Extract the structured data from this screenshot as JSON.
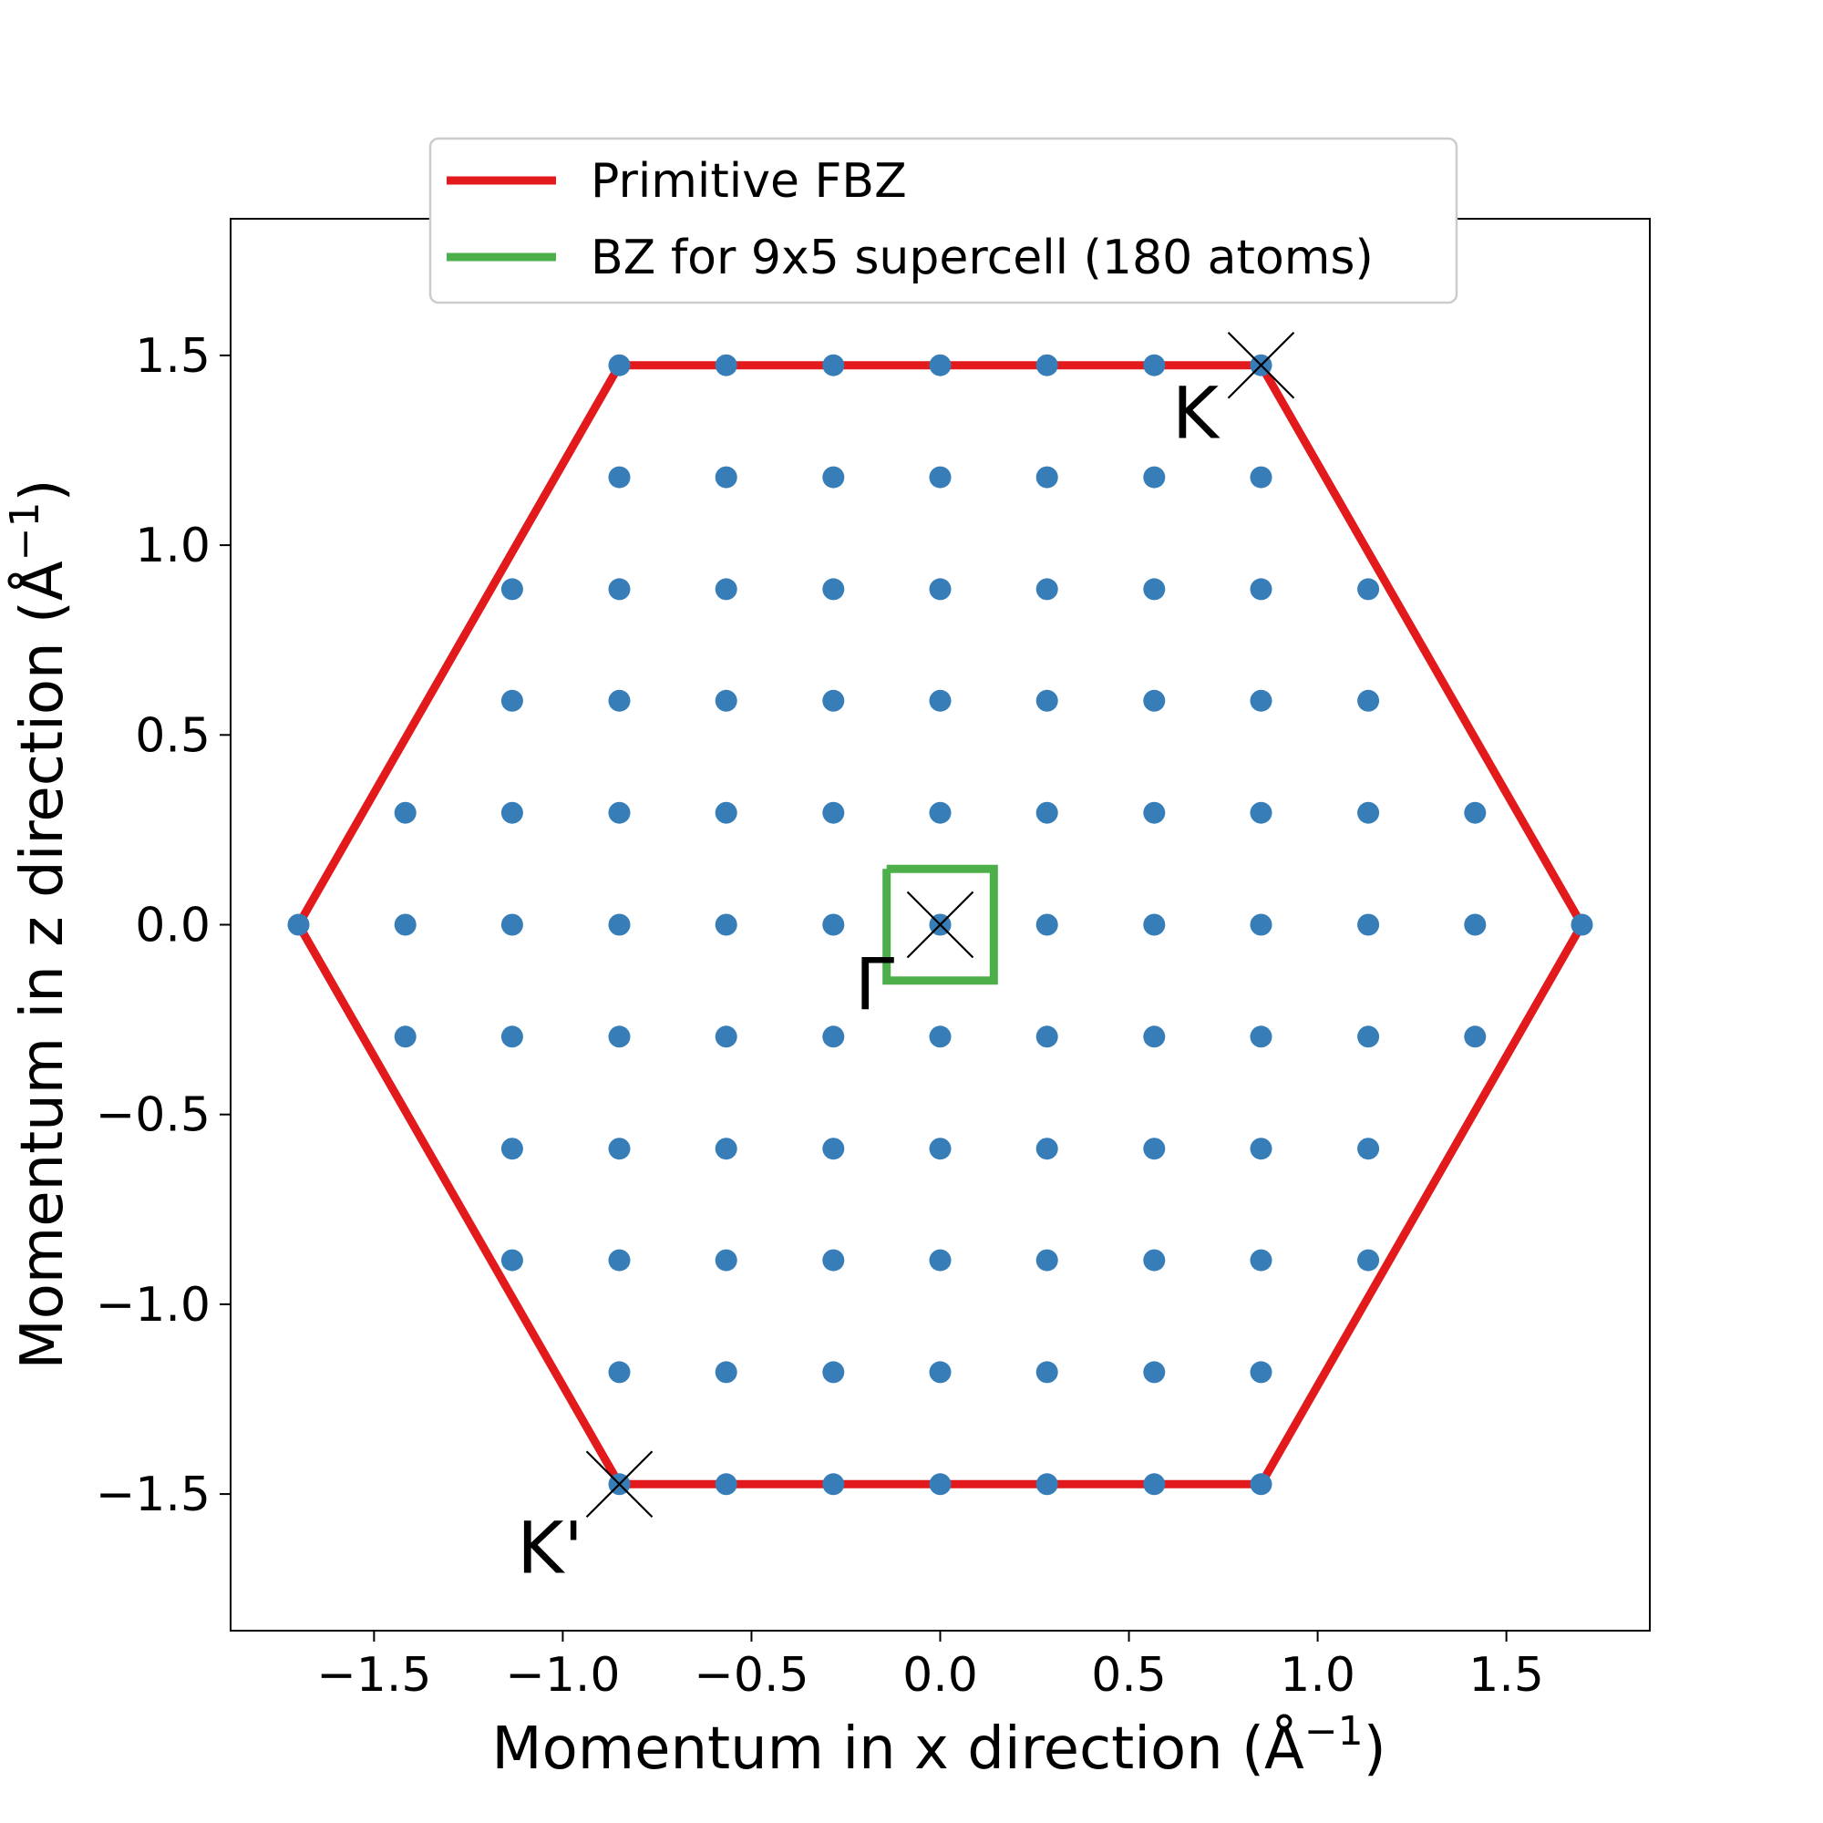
{
  "chart_data": {
    "type": "scatter",
    "xlabel": "Momentum in x direction (Å",
    "ylabel": "Momentum in z direction (Å",
    "label_exponent": "−1",
    "label_close": ")",
    "xlim": [
      -1.88,
      1.88
    ],
    "ylim": [
      -1.86,
      1.86
    ],
    "xticks": [
      -1.5,
      -1.0,
      -0.5,
      0.0,
      0.5,
      1.0,
      1.5
    ],
    "xtick_labels": [
      "−1.5",
      "−1.0",
      "−0.5",
      "0.0",
      "0.5",
      "1.0",
      "1.5"
    ],
    "yticks": [
      -1.5,
      -1.0,
      -0.5,
      0.0,
      0.5,
      1.0,
      1.5
    ],
    "ytick_labels": [
      "−1.5",
      "−1.0",
      "−0.5",
      "0.0",
      "0.5",
      "1.0",
      "1.5"
    ],
    "grid": false,
    "legend_position": "top-center",
    "series": [
      {
        "name": "Primitive FBZ",
        "kind": "line",
        "color": "#e31a1c",
        "x": [
          -1.7,
          -0.85,
          0.85,
          1.7,
          0.85,
          -0.85,
          -1.7
        ],
        "y": [
          0.0,
          1.474,
          1.474,
          0.0,
          -1.474,
          -1.474,
          0.0
        ]
      },
      {
        "name": "BZ for 9x5 supercell (180 atoms)",
        "kind": "line",
        "color": "#4daf4a",
        "x": [
          -0.142,
          0.142,
          0.142,
          -0.142,
          -0.142
        ],
        "y": [
          0.147,
          0.147,
          -0.147,
          -0.147,
          0.147
        ]
      },
      {
        "kind": "points",
        "color": "#377eb8",
        "x_step": 0.2834,
        "y_step": 0.2948,
        "rows": [
          {
            "y": 1.474,
            "x": [
              -0.85,
              -0.567,
              -0.283,
              0.0,
              0.283,
              0.567,
              0.85
            ]
          },
          {
            "y": 1.179,
            "x": [
              -0.85,
              -0.567,
              -0.283,
              0.0,
              0.283,
              0.567,
              0.85
            ]
          },
          {
            "y": 0.884,
            "x": [
              -1.134,
              -0.85,
              -0.567,
              -0.283,
              0.0,
              0.283,
              0.567,
              0.85,
              1.134
            ]
          },
          {
            "y": 0.59,
            "x": [
              -1.134,
              -0.85,
              -0.567,
              -0.283,
              0.0,
              0.283,
              0.567,
              0.85,
              1.134
            ]
          },
          {
            "y": 0.295,
            "x": [
              -1.417,
              -1.134,
              -0.85,
              -0.567,
              -0.283,
              0.0,
              0.283,
              0.567,
              0.85,
              1.134,
              1.417
            ]
          },
          {
            "y": 0.0,
            "x": [
              -1.7,
              -1.417,
              -1.134,
              -0.85,
              -0.567,
              -0.283,
              0.0,
              0.283,
              0.567,
              0.85,
              1.134,
              1.417,
              1.7
            ]
          },
          {
            "y": -0.295,
            "x": [
              -1.417,
              -1.134,
              -0.85,
              -0.567,
              -0.283,
              0.0,
              0.283,
              0.567,
              0.85,
              1.134,
              1.417
            ]
          },
          {
            "y": -0.59,
            "x": [
              -1.134,
              -0.85,
              -0.567,
              -0.283,
              0.0,
              0.283,
              0.567,
              0.85,
              1.134
            ]
          },
          {
            "y": -0.884,
            "x": [
              -1.134,
              -0.85,
              -0.567,
              -0.283,
              0.0,
              0.283,
              0.567,
              0.85,
              1.134
            ]
          },
          {
            "y": -1.179,
            "x": [
              -0.85,
              -0.567,
              -0.283,
              0.0,
              0.283,
              0.567,
              0.85
            ]
          },
          {
            "y": -1.474,
            "x": [
              -0.85,
              -0.567,
              -0.283,
              0.0,
              0.283,
              0.567,
              0.85
            ]
          }
        ]
      }
    ],
    "markers": [
      {
        "label": "K",
        "x": 0.85,
        "y": 1.474
      },
      {
        "label": "Γ",
        "x": 0.0,
        "y": 0.0
      },
      {
        "label": "K'",
        "x": -0.85,
        "y": -1.474
      }
    ]
  }
}
